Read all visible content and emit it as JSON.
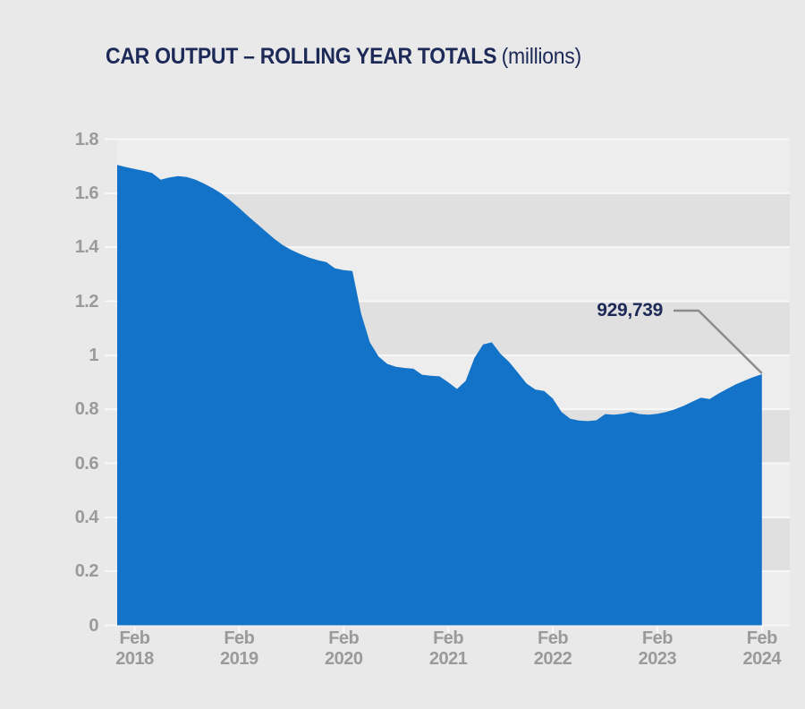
{
  "title": {
    "main": "CAR OUTPUT – ROLLING YEAR TOTALS",
    "suffix": "(millions)"
  },
  "annotation": {
    "label": "929,739"
  },
  "colors": {
    "page_bg": "#e9e9e9",
    "band_light": "#ededed",
    "band_dark": "#e0e0e0",
    "gridline": "#f8f8f8",
    "area_fill": "#1273c8",
    "title_navy": "#1d2957",
    "axis_label_gray": "#9a9a9a",
    "leader_gray": "#8c8c8c"
  },
  "axes": {
    "y": {
      "labels": [
        "1.8",
        "1.6",
        "1.4",
        "1.2",
        "1",
        "0.8",
        "0.6",
        "0.4",
        "0.2",
        "0"
      ]
    },
    "x": {
      "labels": [
        [
          "Feb",
          "2018"
        ],
        [
          "Feb",
          "2019"
        ],
        [
          "Feb",
          "2020"
        ],
        [
          "Feb",
          "2021"
        ],
        [
          "Feb",
          "2022"
        ],
        [
          "Feb",
          "2023"
        ],
        [
          "Feb",
          "2024"
        ]
      ]
    }
  },
  "chart_data": {
    "type": "area",
    "title": "CAR OUTPUT – ROLLING YEAR TOTALS (millions)",
    "unit": "millions of cars, rolling 12-month total",
    "x_start": "Dec 2017",
    "x_end": "Feb 2024",
    "x_interval": "monthly",
    "x_tick_labels": [
      "Feb 2018",
      "Feb 2019",
      "Feb 2020",
      "Feb 2021",
      "Feb 2022",
      "Feb 2023",
      "Feb 2024"
    ],
    "ylim": [
      0,
      1.8
    ],
    "y_ticks": [
      0,
      0.2,
      0.4,
      0.6,
      0.8,
      1.0,
      1.2,
      1.4,
      1.6,
      1.8
    ],
    "grid": "horizontal bands, alternating shading every 0.2",
    "legend": "none",
    "series": [
      {
        "name": "Car output rolling year total (millions)",
        "values": [
          1.705,
          1.697,
          1.69,
          1.683,
          1.675,
          1.65,
          1.658,
          1.663,
          1.66,
          1.65,
          1.635,
          1.618,
          1.598,
          1.573,
          1.545,
          1.516,
          1.488,
          1.46,
          1.432,
          1.408,
          1.39,
          1.375,
          1.362,
          1.352,
          1.345,
          1.322,
          1.315,
          1.312,
          1.155,
          1.048,
          0.995,
          0.968,
          0.957,
          0.953,
          0.95,
          0.928,
          0.924,
          0.922,
          0.9,
          0.875,
          0.905,
          0.99,
          1.04,
          1.048,
          1.005,
          0.975,
          0.935,
          0.895,
          0.873,
          0.868,
          0.84,
          0.79,
          0.765,
          0.758,
          0.756,
          0.759,
          0.782,
          0.78,
          0.783,
          0.79,
          0.782,
          0.78,
          0.783,
          0.79,
          0.8,
          0.812,
          0.828,
          0.843,
          0.838,
          0.858,
          0.875,
          0.892,
          0.906,
          0.919,
          0.9297
        ]
      }
    ],
    "annotation": {
      "text": "929,739",
      "value_millions": 0.929739,
      "points_to": "Feb 2024 (last data point)"
    }
  }
}
